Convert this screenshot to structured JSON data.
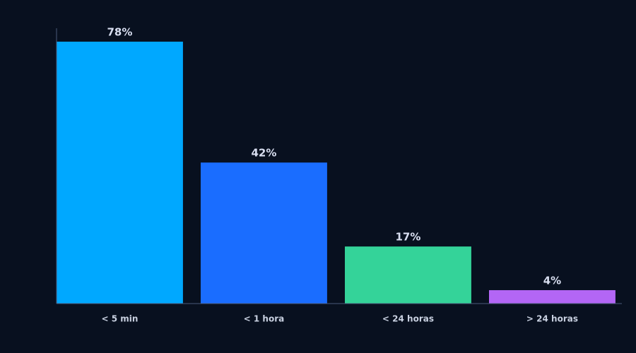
{
  "chart_data": {
    "type": "bar",
    "categories": [
      "< 5 min",
      "< 1 hora",
      "< 24 horas",
      "> 24 horas"
    ],
    "values": [
      78,
      42,
      17,
      4
    ],
    "value_labels": [
      "78%",
      "42%",
      "17%",
      "4%"
    ],
    "colors": [
      "#00a8ff",
      "#1a6dff",
      "#34d399",
      "#b366f5"
    ],
    "ylim": [
      0,
      82
    ]
  }
}
